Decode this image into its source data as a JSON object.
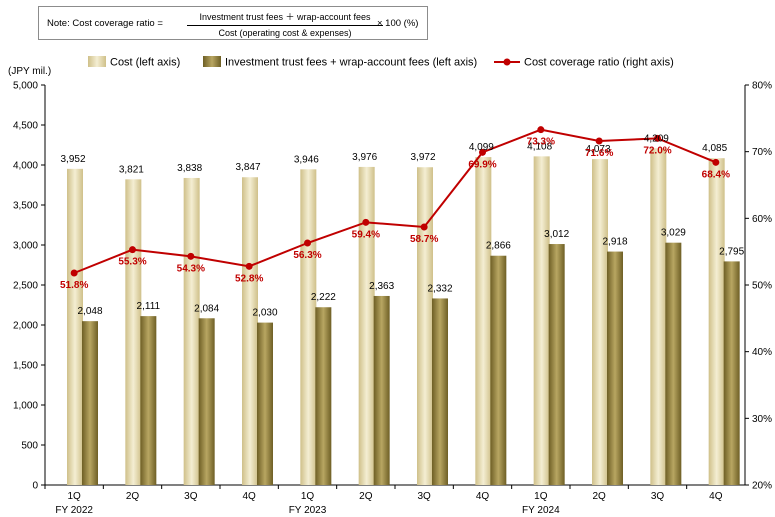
{
  "note": {
    "label": "Note:  Cost coverage ratio =",
    "numerator": "Investment trust fees ＋ wrap-account fees",
    "denominator": "Cost (operating cost & expenses)",
    "multiplier": "× 100 (%)"
  },
  "chart_data": {
    "type": "bar",
    "unit_label": "(JPY mil.)",
    "categories": [
      "1Q",
      "2Q",
      "3Q",
      "4Q",
      "1Q",
      "2Q",
      "3Q",
      "4Q",
      "1Q",
      "2Q",
      "3Q",
      "4Q"
    ],
    "fiscal_years": [
      {
        "label": "FY 2022",
        "start": 0
      },
      {
        "label": "FY 2023",
        "start": 4
      },
      {
        "label": "FY 2024",
        "start": 8
      }
    ],
    "series": [
      {
        "name": "Cost (left axis)",
        "kind": "bar",
        "axis": "left",
        "color": "#e3d8ac",
        "values": [
          3952,
          3821,
          3838,
          3847,
          3946,
          3976,
          3972,
          4099,
          4108,
          4073,
          4209,
          4085
        ],
        "labels": [
          "3,952",
          "3,821",
          "3,838",
          "3,847",
          "3,946",
          "3,976",
          "3,972",
          "4,099",
          "4,108",
          "4,073",
          "4,209",
          "4,085"
        ]
      },
      {
        "name": "Investment trust fees + wrap-account fees (left axis)",
        "kind": "bar",
        "axis": "left",
        "color": "#9c8a45",
        "values": [
          2048,
          2111,
          2084,
          2030,
          2222,
          2363,
          2332,
          2866,
          3012,
          2918,
          3029,
          2795
        ],
        "labels": [
          "2,048",
          "2,111",
          "2,084",
          "2,030",
          "2,222",
          "2,363",
          "2,332",
          "2,866",
          "3,012",
          "2,918",
          "3,029",
          "2,795"
        ]
      },
      {
        "name": "Cost coverage ratio (right axis)",
        "kind": "line",
        "axis": "right",
        "color": "#c00000",
        "values": [
          51.8,
          55.3,
          54.3,
          52.8,
          56.3,
          59.4,
          58.7,
          69.9,
          73.3,
          71.6,
          72.0,
          68.4
        ],
        "labels": [
          "51.8%",
          "55.3%",
          "54.3%",
          "52.8%",
          "56.3%",
          "59.4%",
          "58.7%",
          "69.9%",
          "73.3%",
          "71.6%",
          "72.0%",
          "68.4%"
        ]
      }
    ],
    "left_axis": {
      "ylim": [
        0,
        5000
      ],
      "ticks": [
        0,
        500,
        1000,
        1500,
        2000,
        2500,
        3000,
        3500,
        4000,
        4500,
        5000
      ],
      "tick_labels": [
        "0",
        "500",
        "1,000",
        "1,500",
        "2,000",
        "2,500",
        "3,000",
        "3,500",
        "4,000",
        "4,500",
        "5,000"
      ]
    },
    "right_axis": {
      "ylim": [
        20,
        80
      ],
      "ticks": [
        20,
        30,
        40,
        50,
        60,
        70,
        80
      ],
      "tick_labels": [
        "20%",
        "30%",
        "40%",
        "50%",
        "60%",
        "70%",
        "80%"
      ]
    },
    "grid": false,
    "legend_position": "top"
  }
}
